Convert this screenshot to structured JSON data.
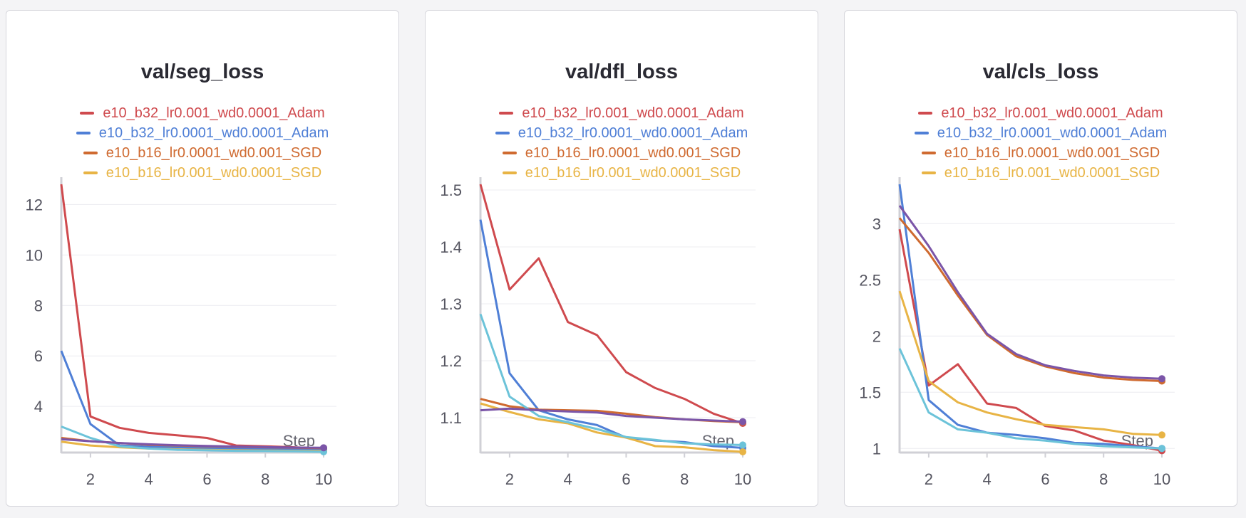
{
  "colors": {
    "e10_b32_lr0.001_wd0.0001_Adam": "#cf4a4e",
    "e10_b32_lr0.0001_wd0.0001_Adam": "#4f7fd6",
    "e10_b16_lr0.0001_wd0.001_SGD": "#cf6a30",
    "e10_b16_lr0.001_wd0.0001_SGD": "#e8b445",
    "extra_cyan": "#6cc3d9",
    "extra_purple": "#7b55a8"
  },
  "chart_data": [
    {
      "type": "line",
      "title": "val/seg_loss",
      "xlabel": "Step",
      "ylabel": "",
      "xlim": [
        1,
        10
      ],
      "ylim": [
        2.2,
        12.8
      ],
      "xticks": [
        2,
        4,
        6,
        8,
        10
      ],
      "yticks": [
        4,
        6,
        8,
        10,
        12
      ],
      "grid": true,
      "legend_position": "top-center",
      "legend": [
        "e10_b32_lr0.001_wd0.0001_Adam",
        "e10_b32_lr0.0001_wd0.0001_Adam",
        "e10_b16_lr0.0001_wd0.001_SGD",
        "e10_b16_lr0.001_wd0.0001_SGD"
      ],
      "x": [
        1,
        2,
        3,
        4,
        5,
        6,
        7,
        8,
        9,
        10
      ],
      "series": [
        {
          "name": "e10_b32_lr0.001_wd0.0001_Adam",
          "values": [
            12.8,
            3.6,
            3.15,
            2.95,
            2.85,
            2.75,
            2.45,
            2.42,
            2.38,
            2.33
          ]
        },
        {
          "name": "e10_b32_lr0.0001_wd0.0001_Adam",
          "values": [
            6.2,
            3.3,
            2.45,
            2.4,
            2.38,
            2.35,
            2.33,
            2.32,
            2.31,
            2.3
          ]
        },
        {
          "name": "e10_b16_lr0.0001_wd0.001_SGD",
          "values": [
            2.75,
            2.62,
            2.55,
            2.48,
            2.45,
            2.42,
            2.4,
            2.38,
            2.36,
            2.35
          ]
        },
        {
          "name": "e10_b16_lr0.001_wd0.0001_SGD",
          "values": [
            2.6,
            2.45,
            2.38,
            2.33,
            2.3,
            2.28,
            2.26,
            2.25,
            2.24,
            2.23
          ]
        },
        {
          "color_key": "extra_cyan",
          "values": [
            3.2,
            2.75,
            2.42,
            2.33,
            2.28,
            2.26,
            2.24,
            2.23,
            2.22,
            2.2
          ]
        },
        {
          "color_key": "extra_purple",
          "values": [
            2.7,
            2.62,
            2.55,
            2.5,
            2.46,
            2.43,
            2.41,
            2.39,
            2.37,
            2.36
          ]
        }
      ]
    },
    {
      "type": "line",
      "title": "val/dfl_loss",
      "xlabel": "Step",
      "ylabel": "",
      "xlim": [
        1,
        10
      ],
      "ylim": [
        1.04,
        1.51
      ],
      "xticks": [
        2,
        4,
        6,
        8,
        10
      ],
      "yticks": [
        1.1,
        1.2,
        1.3,
        1.4,
        1.5
      ],
      "grid": true,
      "legend_position": "top-center",
      "legend": [
        "e10_b32_lr0.001_wd0.0001_Adam",
        "e10_b32_lr0.0001_wd0.0001_Adam",
        "e10_b16_lr0.0001_wd0.001_SGD",
        "e10_b16_lr0.001_wd0.0001_SGD"
      ],
      "x": [
        1,
        2,
        3,
        4,
        5,
        6,
        7,
        8,
        9,
        10
      ],
      "series": [
        {
          "name": "e10_b32_lr0.001_wd0.0001_Adam",
          "values": [
            1.51,
            1.325,
            1.38,
            1.268,
            1.245,
            1.18,
            1.152,
            1.133,
            1.107,
            1.09
          ]
        },
        {
          "name": "e10_b32_lr0.0001_wd0.0001_Adam",
          "values": [
            1.448,
            1.178,
            1.113,
            1.097,
            1.087,
            1.065,
            1.06,
            1.057,
            1.05,
            1.047
          ]
        },
        {
          "name": "e10_b16_lr0.0001_wd0.001_SGD",
          "values": [
            1.133,
            1.12,
            1.114,
            1.113,
            1.112,
            1.107,
            1.101,
            1.097,
            1.094,
            1.092
          ]
        },
        {
          "name": "e10_b16_lr0.001_wd0.0001_SGD",
          "values": [
            1.125,
            1.11,
            1.097,
            1.09,
            1.074,
            1.065,
            1.05,
            1.048,
            1.043,
            1.04
          ]
        },
        {
          "color_key": "extra_cyan",
          "values": [
            1.282,
            1.137,
            1.103,
            1.092,
            1.08,
            1.066,
            1.061,
            1.055,
            1.053,
            1.052
          ]
        },
        {
          "color_key": "extra_purple",
          "values": [
            1.113,
            1.116,
            1.113,
            1.111,
            1.109,
            1.103,
            1.1,
            1.097,
            1.095,
            1.093
          ]
        }
      ]
    },
    {
      "type": "line",
      "title": "val/cls_loss",
      "xlabel": "Step",
      "ylabel": "",
      "xlim": [
        1,
        10
      ],
      "ylim": [
        0.97,
        3.35
      ],
      "xticks": [
        2,
        4,
        6,
        8,
        10
      ],
      "yticks": [
        1,
        1.5,
        2,
        2.5,
        3
      ],
      "grid": true,
      "legend_position": "top-center",
      "legend": [
        "e10_b32_lr0.001_wd0.0001_Adam",
        "e10_b32_lr0.0001_wd0.0001_Adam",
        "e10_b16_lr0.0001_wd0.001_SGD",
        "e10_b16_lr0.001_wd0.0001_SGD"
      ],
      "x": [
        1,
        2,
        3,
        4,
        5,
        6,
        7,
        8,
        9,
        10
      ],
      "series": [
        {
          "name": "e10_b32_lr0.001_wd0.0001_Adam",
          "values": [
            2.95,
            1.56,
            1.75,
            1.4,
            1.36,
            1.2,
            1.16,
            1.07,
            1.03,
            0.98
          ]
        },
        {
          "name": "e10_b32_lr0.0001_wd0.0001_Adam",
          "values": [
            3.35,
            1.43,
            1.21,
            1.14,
            1.12,
            1.09,
            1.05,
            1.04,
            1.02,
            1.0
          ]
        },
        {
          "name": "e10_b16_lr0.0001_wd0.001_SGD",
          "values": [
            3.05,
            2.74,
            2.36,
            2.01,
            1.82,
            1.73,
            1.67,
            1.63,
            1.61,
            1.6
          ]
        },
        {
          "name": "e10_b16_lr0.001_wd0.0001_SGD",
          "values": [
            2.4,
            1.6,
            1.41,
            1.32,
            1.26,
            1.21,
            1.19,
            1.17,
            1.13,
            1.12
          ]
        },
        {
          "color_key": "extra_cyan",
          "values": [
            1.89,
            1.32,
            1.17,
            1.14,
            1.09,
            1.07,
            1.04,
            1.02,
            1.01,
            1.0
          ]
        },
        {
          "color_key": "extra_purple",
          "values": [
            3.16,
            2.8,
            2.39,
            2.02,
            1.84,
            1.74,
            1.69,
            1.65,
            1.63,
            1.62
          ]
        }
      ]
    }
  ]
}
